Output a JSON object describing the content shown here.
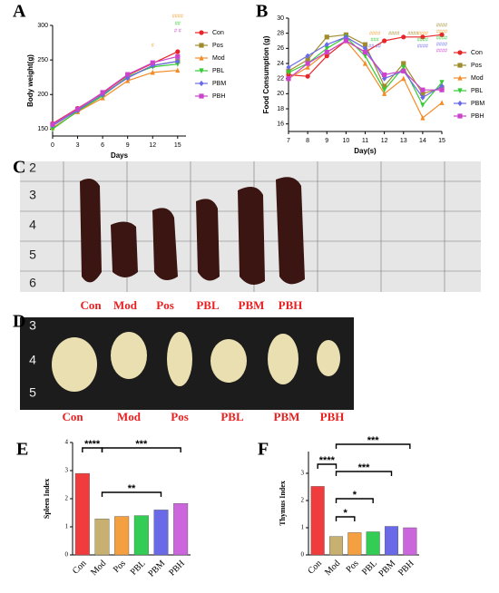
{
  "chart_data": [
    {
      "type": "line",
      "panel": "A",
      "ylabel": "Body weight(g)",
      "xlabel": "Days",
      "x": [
        0,
        3,
        6,
        9,
        12,
        15
      ],
      "xlim": [
        0,
        16
      ],
      "xticks": [
        0,
        3,
        6,
        9,
        12,
        15
      ],
      "ylim": [
        140,
        300
      ],
      "yticks": [
        150,
        200,
        250,
        300
      ],
      "series": [
        {
          "name": "Con",
          "color": "#e8262a",
          "marker": "circle",
          "values": [
            158,
            180,
            202,
            228,
            245,
            262
          ]
        },
        {
          "name": "Pos",
          "color": "#a08c2c",
          "marker": "square",
          "values": [
            155,
            178,
            200,
            225,
            242,
            248
          ]
        },
        {
          "name": "Mod",
          "color": "#f28c28",
          "marker": "triangle",
          "values": [
            152,
            175,
            195,
            220,
            232,
            235
          ]
        },
        {
          "name": "PBL",
          "color": "#33cc33",
          "marker": "down",
          "values": [
            150,
            176,
            198,
            226,
            240,
            244
          ]
        },
        {
          "name": "PBM",
          "color": "#6a6ae8",
          "marker": "diamond",
          "values": [
            155,
            177,
            200,
            224,
            242,
            248
          ]
        },
        {
          "name": "PBH",
          "color": "#cc44cc",
          "marker": "square",
          "values": [
            157,
            179,
            203,
            229,
            246,
            255
          ]
        }
      ],
      "annotations": [
        {
          "text": "####",
          "color": "#f0a030"
        },
        {
          "text": "##",
          "color": "#33cc33"
        },
        {
          "text": "# #",
          "color": "#cc44cc"
        },
        {
          "text": "#",
          "color": "#f0a030"
        }
      ]
    },
    {
      "type": "line",
      "panel": "B",
      "ylabel": "Food Consumption (g)",
      "xlabel": "Day(s)",
      "x": [
        7,
        8,
        9,
        10,
        11,
        12,
        13,
        14,
        15
      ],
      "xlim": [
        7,
        15
      ],
      "xticks": [
        7,
        8,
        9,
        10,
        11,
        12,
        13,
        14,
        15
      ],
      "ylim": [
        15,
        30
      ],
      "yticks": [
        16,
        18,
        20,
        22,
        24,
        26,
        28,
        30
      ],
      "series": [
        {
          "name": "Con",
          "color": "#e8262a",
          "marker": "circle",
          "values": [
            22.5,
            22.3,
            25.0,
            27.0,
            25.5,
            27.0,
            27.5,
            27.5,
            27.8
          ]
        },
        {
          "name": "Pos",
          "color": "#a08c2c",
          "marker": "square",
          "values": [
            23.0,
            24.5,
            27.5,
            27.8,
            26.5,
            21.0,
            24.0,
            20.0,
            20.8
          ]
        },
        {
          "name": "Mod",
          "color": "#f28c28",
          "marker": "triangle",
          "values": [
            22.0,
            23.5,
            25.5,
            27.0,
            24.0,
            20.0,
            22.0,
            16.8,
            18.8
          ]
        },
        {
          "name": "PBL",
          "color": "#33cc33",
          "marker": "down",
          "values": [
            22.8,
            24.0,
            26.0,
            27.5,
            25.0,
            20.5,
            23.5,
            18.5,
            21.5
          ]
        },
        {
          "name": "PBM",
          "color": "#6a6ae8",
          "marker": "diamond",
          "values": [
            23.5,
            25.0,
            26.5,
            27.5,
            26.0,
            22.0,
            23.0,
            19.5,
            21.0
          ]
        },
        {
          "name": "PBH",
          "color": "#cc44cc",
          "marker": "square",
          "values": [
            22.0,
            24.0,
            25.5,
            27.0,
            25.5,
            22.5,
            23.0,
            20.5,
            20.5
          ]
        }
      ],
      "annotations": [
        {
          "text": "####",
          "color": "#f0a030"
        },
        {
          "text": "###",
          "color": "#33cc33"
        },
        {
          "text": "## ##",
          "color": "#6a6ae8"
        },
        {
          "text": "####",
          "color": "#a08c2c"
        },
        {
          "text": "####",
          "color": "#a08c2c"
        },
        {
          "text": "####",
          "color": "#f0a030"
        },
        {
          "text": "####",
          "color": "#33cc33"
        },
        {
          "text": "####",
          "color": "#6a6ae8"
        },
        {
          "text": "####",
          "color": "#a08c2c"
        },
        {
          "text": "####",
          "color": "#f0a030"
        },
        {
          "text": "####",
          "color": "#33cc33"
        },
        {
          "text": "####",
          "color": "#6a6ae8"
        },
        {
          "text": "####",
          "color": "#cc44cc"
        }
      ]
    },
    {
      "type": "bar",
      "panel": "E",
      "ylabel": "Spleen Index",
      "categories": [
        "Con",
        "Mod",
        "Pos",
        "PBL",
        "PBM",
        "PBH"
      ],
      "values": [
        2.9,
        1.28,
        1.37,
        1.4,
        1.6,
        1.83
      ],
      "colors": [
        "#f03c3c",
        "#c8b070",
        "#f5a040",
        "#33cc55",
        "#6a6ae8",
        "#cc66dd"
      ],
      "ylim": [
        0,
        4
      ],
      "yticks": [
        0,
        1,
        2,
        3,
        4
      ],
      "significance": [
        "****",
        "**",
        "***"
      ]
    },
    {
      "type": "bar",
      "panel": "F",
      "ylabel": "Thymus Index",
      "categories": [
        "Con",
        "Mod",
        "Pos",
        "PBL",
        "PBM",
        "PBH"
      ],
      "values": [
        2.52,
        0.68,
        0.82,
        0.85,
        1.05,
        1.0
      ],
      "colors": [
        "#f03c3c",
        "#c8b070",
        "#f5a040",
        "#33cc55",
        "#6a6ae8",
        "#cc66dd"
      ],
      "ylim": [
        0,
        3.8
      ],
      "yticks": [
        0,
        1,
        2,
        3
      ],
      "significance": [
        "****",
        "***",
        "***",
        "*",
        "*"
      ]
    }
  ],
  "photos": [
    {
      "panel": "C",
      "ruler": [
        "2",
        "3",
        "4",
        "5",
        "6"
      ],
      "labels": [
        "Con",
        "Mod",
        "Pos",
        "PBL",
        "PBM",
        "PBH"
      ]
    },
    {
      "panel": "D",
      "ruler": [
        "3",
        "4",
        "5"
      ],
      "labels": [
        "Con",
        "Mod",
        "Pos",
        "PBL",
        "PBM",
        "PBH"
      ]
    }
  ]
}
